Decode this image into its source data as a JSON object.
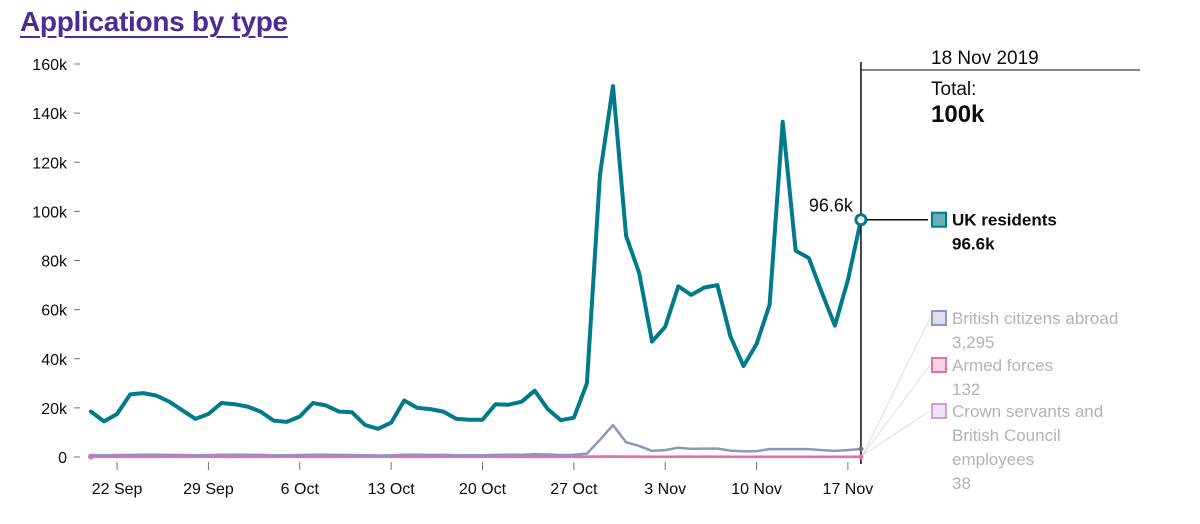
{
  "page": {
    "title": "Applications by type"
  },
  "colors": {
    "uk_residents": "#007b8a",
    "british_citizens_abroad": "#8f95c2",
    "armed_forces": "#ea6da6",
    "crown_servants": "#c7a3d6",
    "axis_text": "#0b0c0c",
    "tick": "#6f777b",
    "muted_text": "#b1b4b6",
    "title": "#4c2c92"
  },
  "tooltip": {
    "date": "18 Nov 2019",
    "total_label": "Total:",
    "total_value": "100k"
  },
  "legend": [
    {
      "series": "UK residents",
      "value": "96.6k",
      "active": true
    },
    {
      "series": "British citizens abroad",
      "value": "3,295",
      "active": false
    },
    {
      "series": "Armed forces",
      "value": "132",
      "active": false
    },
    {
      "series": "Crown servants and British Council employees",
      "value": "38",
      "active": false
    }
  ],
  "chart_data": {
    "type": "line",
    "xlabel": "",
    "ylabel": "",
    "ylim": [
      0,
      160000
    ],
    "grid": false,
    "legend_placement": "right",
    "yticks": [
      0,
      20000,
      40000,
      60000,
      80000,
      100000,
      120000,
      140000,
      160000
    ],
    "yticklabels": [
      "0",
      "20k",
      "40k",
      "60k",
      "80k",
      "100k",
      "120k",
      "140k",
      "160k"
    ],
    "xticks": [
      {
        "day": 5,
        "label": "22 Sep"
      },
      {
        "day": 12,
        "label": "29 Sep"
      },
      {
        "day": 19,
        "label": "6 Oct"
      },
      {
        "day": 26,
        "label": "13 Oct"
      },
      {
        "day": 33,
        "label": "20 Oct"
      },
      {
        "day": 40,
        "label": "27 Oct"
      },
      {
        "day": 47,
        "label": "3 Nov"
      },
      {
        "day": 54,
        "label": "10 Nov"
      },
      {
        "day": 61,
        "label": "17 Nov"
      }
    ],
    "hover": {
      "day": 62,
      "label": "96.6k"
    },
    "series": [
      {
        "name": "UK residents",
        "color": "#007b8a",
        "values": [
          18500,
          14500,
          17500,
          25500,
          26000,
          25000,
          22500,
          19000,
          15500,
          17500,
          22000,
          21500,
          20500,
          18500,
          14800,
          14300,
          16500,
          22000,
          21000,
          18500,
          18200,
          13000,
          11500,
          14000,
          23000,
          20000,
          19500,
          18500,
          15500,
          15200,
          15200,
          21500,
          21300,
          22500,
          27000,
          19500,
          15000,
          16000,
          30000,
          115000,
          151000,
          90000,
          75000,
          47000,
          53000,
          69500,
          66000,
          69000,
          70000,
          49000,
          37000,
          46000,
          62000,
          136500,
          84000,
          81000,
          67000,
          53500,
          72000,
          96600
        ]
      },
      {
        "name": "British citizens abroad",
        "color": "#8f95c2",
        "values": [
          800,
          700,
          800,
          850,
          900,
          900,
          850,
          800,
          700,
          800,
          900,
          900,
          900,
          850,
          750,
          700,
          800,
          900,
          900,
          850,
          800,
          700,
          600,
          700,
          900,
          900,
          850,
          850,
          750,
          700,
          700,
          850,
          900,
          900,
          1100,
          1000,
          800,
          900,
          1400,
          7000,
          13000,
          6000,
          4500,
          2500,
          2800,
          3800,
          3300,
          3400,
          3400,
          2600,
          2300,
          2400,
          3200,
          3200,
          3200,
          3200,
          2800,
          2500,
          2800,
          3295
        ]
      },
      {
        "name": "Armed forces",
        "color": "#ea6da6",
        "values": [
          130,
          120,
          130,
          140,
          140,
          140,
          130,
          130,
          120,
          130,
          140,
          140,
          140,
          130,
          120,
          120,
          130,
          140,
          140,
          130,
          130,
          120,
          110,
          120,
          140,
          140,
          130,
          130,
          120,
          120,
          120,
          130,
          140,
          140,
          150,
          140,
          130,
          140,
          160,
          200,
          250,
          180,
          160,
          140,
          140,
          150,
          145,
          145,
          145,
          135,
          130,
          130,
          140,
          140,
          140,
          140,
          135,
          130,
          130,
          132
        ]
      },
      {
        "name": "Crown servants and British Council employees",
        "color": "#c7a3d6",
        "values": [
          40,
          35,
          40,
          45,
          45,
          45,
          40,
          40,
          35,
          40,
          45,
          45,
          45,
          40,
          35,
          35,
          40,
          45,
          45,
          40,
          40,
          35,
          30,
          35,
          45,
          45,
          40,
          40,
          35,
          35,
          35,
          40,
          45,
          45,
          50,
          45,
          40,
          45,
          50,
          60,
          70,
          55,
          50,
          45,
          45,
          48,
          46,
          46,
          46,
          42,
          40,
          40,
          44,
          44,
          44,
          44,
          42,
          40,
          40,
          38
        ]
      }
    ]
  }
}
